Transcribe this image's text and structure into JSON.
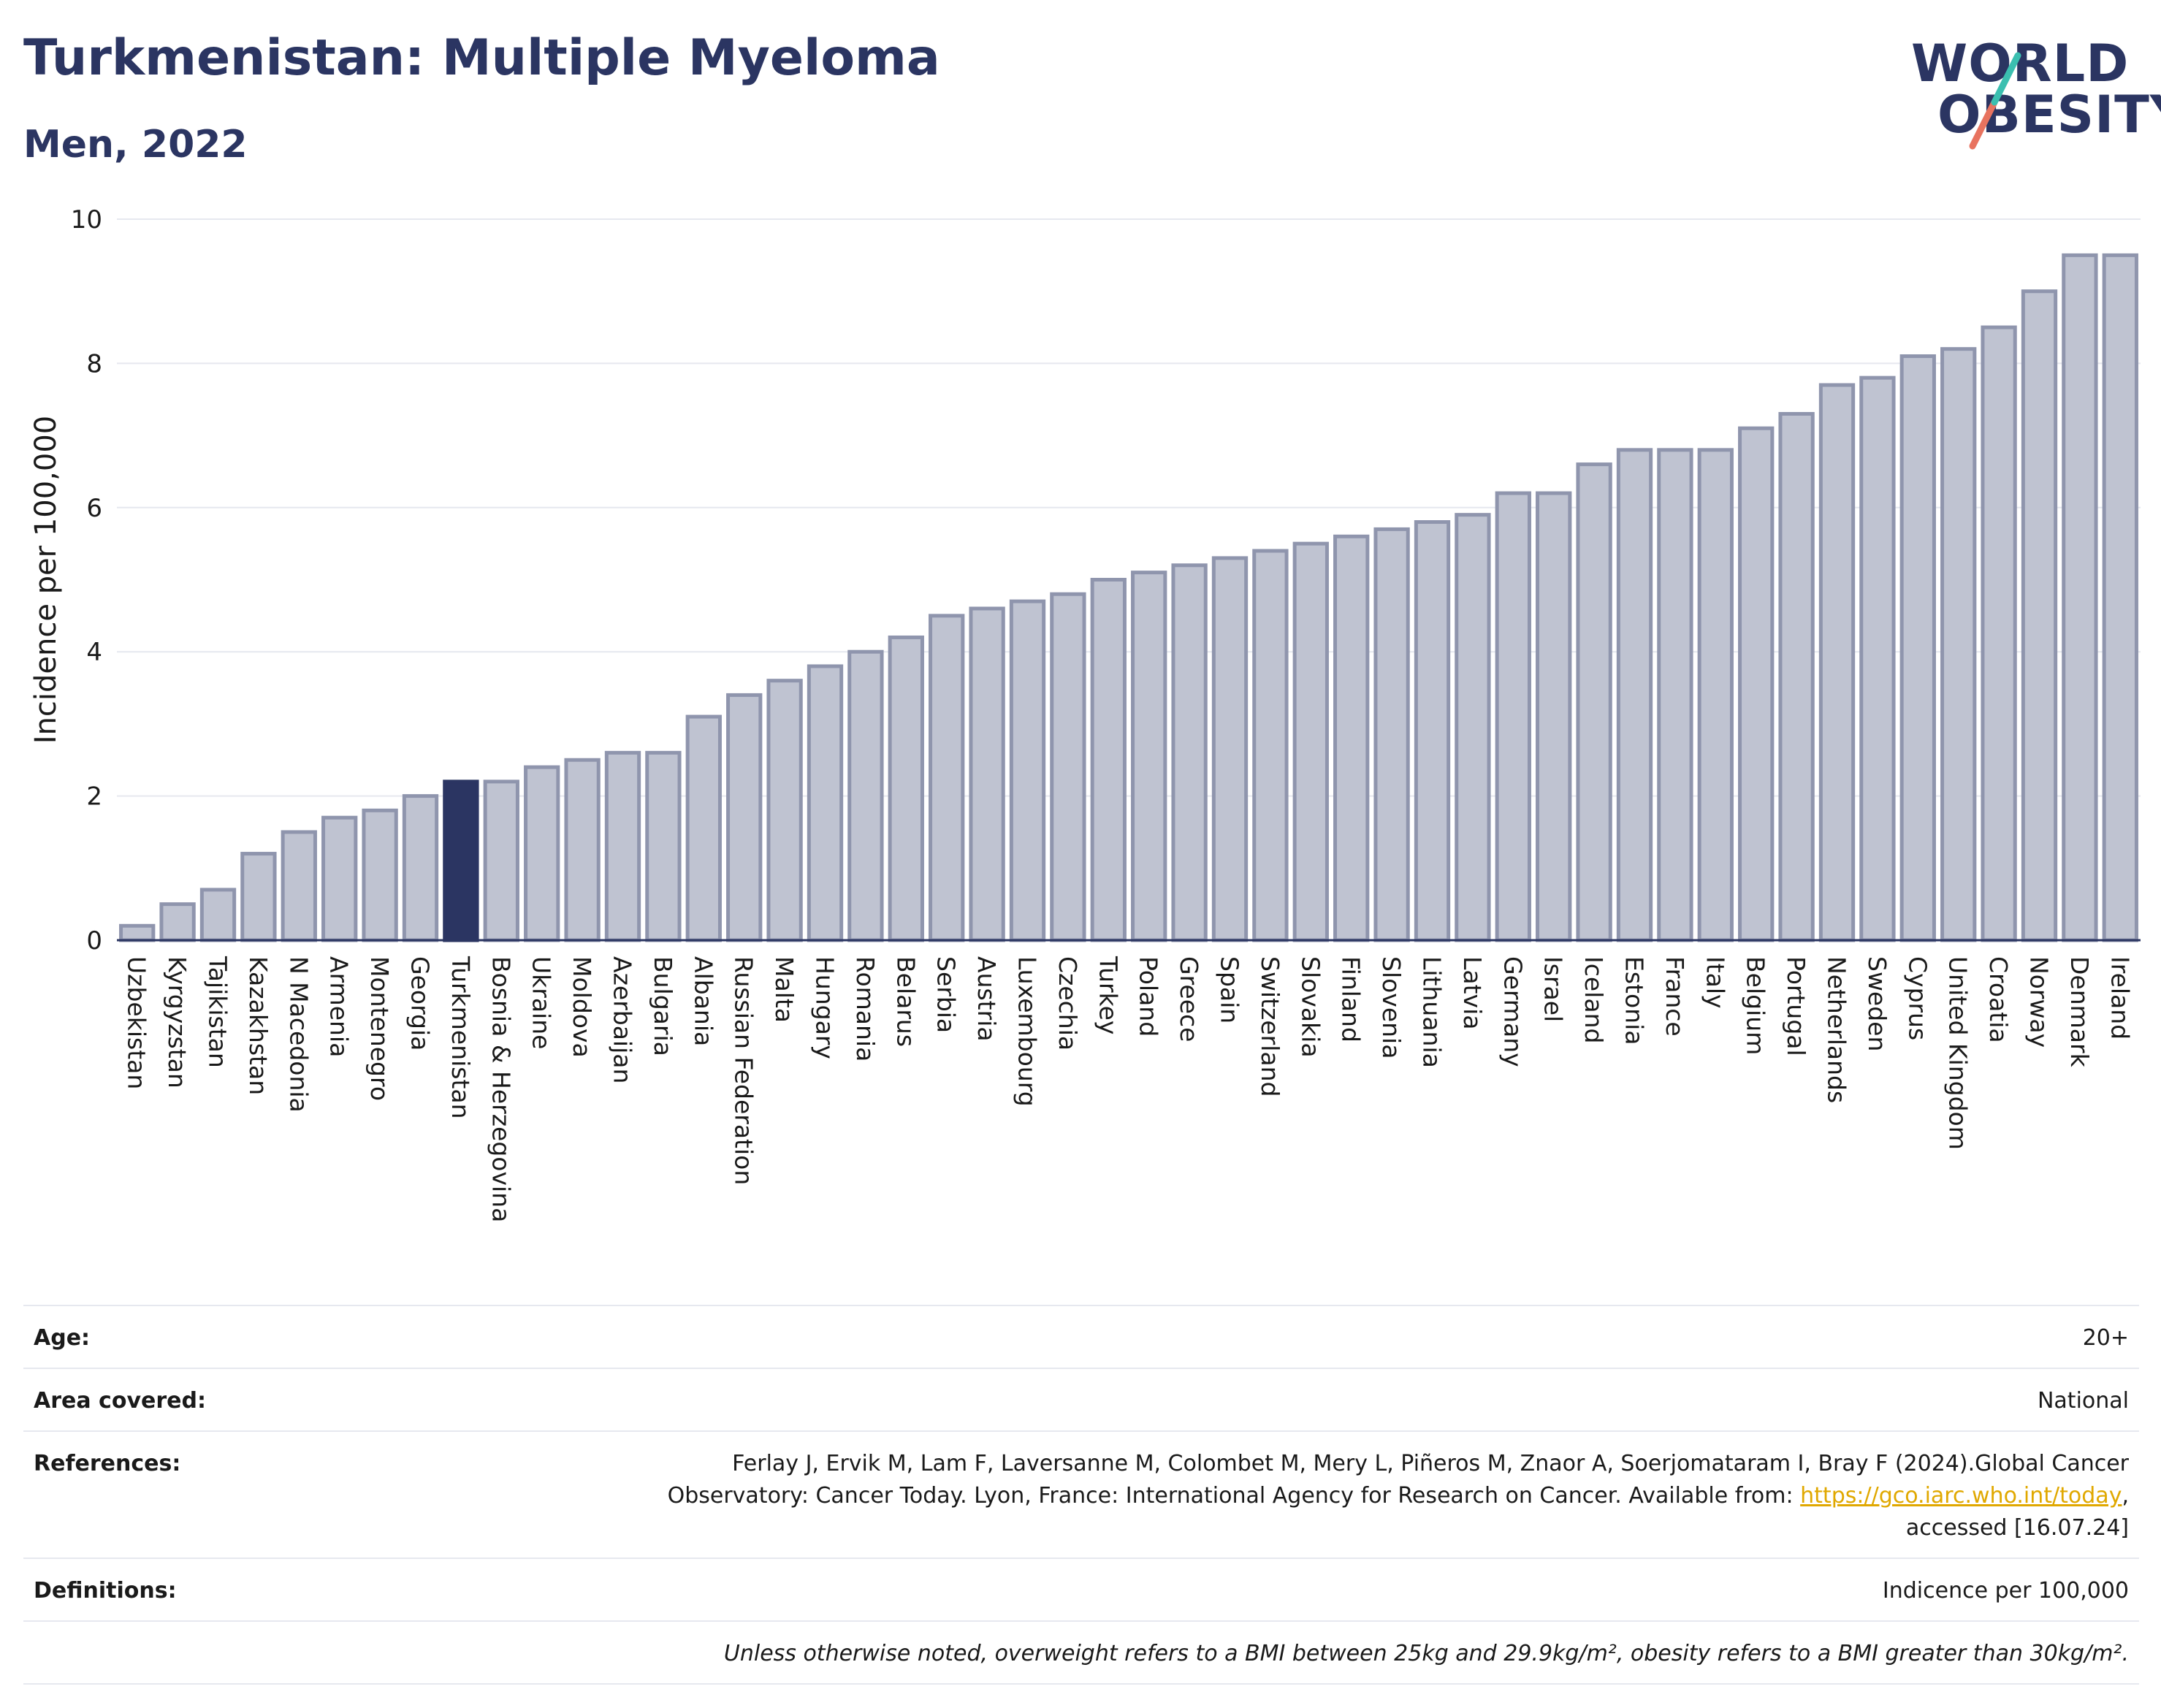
{
  "header": {
    "title": "Turkmenistan: Multiple Myeloma",
    "subtitle": "Men, 2022",
    "logo_line1": "WORLD",
    "logo_line2": "OBESITY"
  },
  "colors": {
    "title": "#2b3562",
    "bar_default": "#bfc3d1",
    "bar_default_border": "#8f95ad",
    "bar_highlight": "#2b3562",
    "grid": "#e6e8ef",
    "link": "#e0a800",
    "logo_slash_teal": "#3bbfb0",
    "logo_slash_coral": "#e8735f"
  },
  "chart_data": {
    "type": "bar",
    "ylabel": "Incidence per 100,000",
    "ylim": [
      0,
      10
    ],
    "yticks": [
      0,
      2,
      4,
      6,
      8,
      10
    ],
    "grid": true,
    "highlight": "Turkmenistan",
    "categories": [
      "Uzbekistan",
      "Kyrgyzstan",
      "Tajikistan",
      "Kazakhstan",
      "N Macedonia",
      "Armenia",
      "Montenegro",
      "Georgia",
      "Turkmenistan",
      "Bosnia & Herzegovina",
      "Ukraine",
      "Moldova",
      "Azerbaijan",
      "Bulgaria",
      "Albania",
      "Russian Federation",
      "Malta",
      "Hungary",
      "Romania",
      "Belarus",
      "Serbia",
      "Austria",
      "Luxembourg",
      "Czechia",
      "Turkey",
      "Poland",
      "Greece",
      "Spain",
      "Switzerland",
      "Slovakia",
      "Finland",
      "Slovenia",
      "Lithuania",
      "Latvia",
      "Germany",
      "Israel",
      "Iceland",
      "Estonia",
      "France",
      "Italy",
      "Belgium",
      "Portugal",
      "Netherlands",
      "Sweden",
      "Cyprus",
      "United Kingdom",
      "Croatia",
      "Norway",
      "Denmark",
      "Ireland"
    ],
    "values": [
      0.2,
      0.5,
      0.7,
      1.2,
      1.5,
      1.7,
      1.8,
      2.0,
      2.2,
      2.2,
      2.4,
      2.5,
      2.6,
      2.6,
      3.1,
      3.4,
      3.6,
      3.8,
      4.0,
      4.2,
      4.5,
      4.6,
      4.7,
      4.8,
      5.0,
      5.1,
      5.2,
      5.3,
      5.4,
      5.5,
      5.6,
      5.7,
      5.8,
      5.9,
      6.2,
      6.2,
      6.6,
      6.8,
      6.8,
      6.8,
      7.1,
      7.3,
      7.7,
      7.8,
      8.1,
      8.2,
      8.5,
      9.0,
      9.5,
      9.5
    ]
  },
  "footer": {
    "age_label": "Age:",
    "age_value": "20+",
    "area_label": "Area covered:",
    "area_value": "National",
    "references_label": "References:",
    "references_text1": "Ferlay J, Ervik M, Lam F, Laversanne M, Colombet M, Mery L, Piñeros M, Znaor A, Soerjomataram I, Bray F (2024).Global Cancer",
    "references_text2": "Observatory: Cancer Today. Lyon, France: International Agency for Research on Cancer. Available from: ",
    "references_link": "https://gco.iarc.who.int/today",
    "references_text3": ",",
    "references_text4": "accessed [16.07.24]",
    "definitions_label": "Definitions:",
    "definitions_value": "Indicence per 100,000",
    "note": "Unless otherwise noted, overweight refers to a BMI between 25kg and 29.9kg/m², obesity refers to a BMI greater than 30kg/m²."
  }
}
